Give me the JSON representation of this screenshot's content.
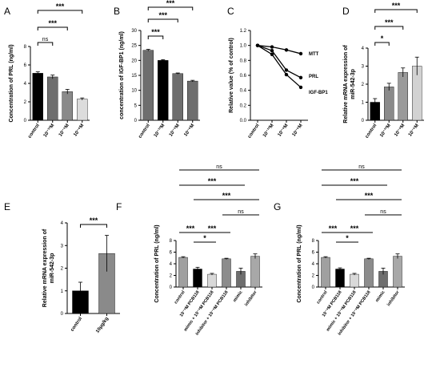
{
  "chart_data": [
    {
      "panel": "A",
      "type": "bar",
      "ylabel": "Concentration of PRL (ng/ml)",
      "ylim": [
        0,
        8
      ],
      "yticks": [
        0,
        2,
        4,
        6,
        8
      ],
      "categories": [
        "control",
        "10⁻¹²M",
        "10⁻⁹M",
        "10⁻⁶M"
      ],
      "values": [
        5.1,
        4.7,
        3.1,
        2.3
      ],
      "errors": [
        0.15,
        0.2,
        0.25,
        0.12
      ],
      "colors": [
        "#000000",
        "#6e6e6e",
        "#8a8a8a",
        "#dcdcdc"
      ],
      "sig": [
        {
          "from": 0,
          "to": 1,
          "label": "ns"
        },
        {
          "from": 0,
          "to": 2,
          "label": "***"
        },
        {
          "from": 0,
          "to": 3,
          "label": "***"
        }
      ]
    },
    {
      "panel": "B",
      "type": "bar",
      "ylabel": "concentration of IGF-BP1 (ng/ml)",
      "ylim": [
        0,
        30
      ],
      "yticks": [
        0,
        5,
        10,
        15,
        20,
        25,
        30
      ],
      "categories": [
        "control",
        "10⁻¹²M",
        "10⁻⁹M",
        "10⁻⁶M"
      ],
      "values": [
        23.4,
        20.0,
        15.6,
        13.1
      ],
      "errors": [
        0.3,
        0.25,
        0.2,
        0.25
      ],
      "colors": [
        "#6e6e6e",
        "#000000",
        "#6e6e6e",
        "#6e6e6e"
      ],
      "sig": [
        {
          "from": 0,
          "to": 1,
          "label": "***"
        },
        {
          "from": 0,
          "to": 2,
          "label": "***"
        },
        {
          "from": 0,
          "to": 3,
          "label": "***"
        }
      ]
    },
    {
      "panel": "C",
      "type": "line",
      "ylabel": "Relative value (% of control)",
      "ylim": [
        0,
        1.2
      ],
      "yticks": [
        0.0,
        0.2,
        0.4,
        0.6,
        0.8,
        1.0,
        1.2
      ],
      "categories": [
        "control",
        "10⁻¹²M",
        "10⁻⁹M",
        "10⁻⁶M"
      ],
      "series": [
        {
          "name": "MTT",
          "values": [
            1.0,
            0.98,
            0.94,
            0.89
          ]
        },
        {
          "name": "PRL",
          "values": [
            1.0,
            0.93,
            0.67,
            0.57
          ]
        },
        {
          "name": "IGF-BP1",
          "values": [
            1.0,
            0.88,
            0.61,
            0.44
          ]
        }
      ]
    },
    {
      "panel": "D",
      "type": "bar",
      "ylabel": "Relative mRNA expression of miR-542-3p",
      "ylim": [
        0,
        4
      ],
      "yticks": [
        0,
        1,
        2,
        3,
        4
      ],
      "categories": [
        "control",
        "10⁻¹²M",
        "10⁻⁹M",
        "10⁻⁶M"
      ],
      "values": [
        1.0,
        1.85,
        2.65,
        3.0
      ],
      "errors": [
        0.2,
        0.2,
        0.25,
        0.5
      ],
      "colors": [
        "#000000",
        "#8a8a8a",
        "#9a9a9a",
        "#d2d2d2"
      ],
      "sig": [
        {
          "from": 0,
          "to": 1,
          "label": "*"
        },
        {
          "from": 0,
          "to": 2,
          "label": "***"
        },
        {
          "from": 0,
          "to": 3,
          "label": "***"
        }
      ]
    },
    {
      "panel": "E",
      "type": "bar",
      "ylabel": "Relative mRNA expression of miR-542-3p",
      "ylim": [
        0,
        4
      ],
      "yticks": [
        0,
        1,
        2,
        3,
        4
      ],
      "categories": [
        "control",
        "10μg/kg"
      ],
      "values": [
        1.0,
        2.65
      ],
      "errors": [
        0.38,
        0.8
      ],
      "colors": [
        "#000000",
        "#8a8a8a"
      ],
      "sig": [
        {
          "from": 0,
          "to": 1,
          "label": "***"
        }
      ]
    },
    {
      "panel": "F",
      "type": "bar",
      "ylabel": "Concentration of PRL (ng/ml)",
      "ylim": [
        0,
        8
      ],
      "yticks": [
        0,
        2,
        4,
        6,
        8
      ],
      "categories": [
        "control",
        "10⁻⁹M PCB118",
        "mimic + 10⁻⁹M PCB118",
        "inhibitor + 10⁻⁹M PCB118",
        "mimic",
        "inhibitor"
      ],
      "values": [
        5.1,
        3.1,
        2.2,
        4.85,
        2.7,
        5.3
      ],
      "errors": [
        0.12,
        0.3,
        0.15,
        0.1,
        0.55,
        0.4
      ],
      "colors": [
        "#a0a0a0",
        "#000000",
        "#d9d9d9",
        "#8c8c8c",
        "#6e6e6e",
        "#a8a8a8"
      ],
      "sig": [
        {
          "from": 0,
          "to": 1,
          "label": "***"
        },
        {
          "from": 1,
          "to": 2,
          "label": "*"
        },
        {
          "from": 1,
          "to": 3,
          "label": "***"
        },
        {
          "from": 3,
          "to": 5,
          "label": "ns"
        },
        {
          "from": 1,
          "to": 5,
          "label": "***"
        },
        {
          "from": 0,
          "to": 4,
          "label": "***"
        },
        {
          "from": 0,
          "to": 5,
          "label": "ns"
        }
      ]
    },
    {
      "panel": "G",
      "type": "bar",
      "ylabel": "Concentration of PRL (ng/ml)",
      "ylim": [
        0,
        8
      ],
      "yticks": [
        0,
        2,
        4,
        6,
        8
      ],
      "categories": [
        "control",
        "10⁻⁹M PCB118",
        "mimic + 10⁻⁹M PCB118",
        "inhibitor + 10⁻⁹M PCB118",
        "mimic",
        "inhibitor"
      ],
      "values": [
        5.1,
        3.1,
        2.2,
        4.85,
        2.7,
        5.3
      ],
      "errors": [
        0.12,
        0.2,
        0.15,
        0.1,
        0.55,
        0.4
      ],
      "colors": [
        "#a0a0a0",
        "#000000",
        "#d9d9d9",
        "#8c8c8c",
        "#6e6e6e",
        "#a8a8a8"
      ],
      "sig": [
        {
          "from": 0,
          "to": 1,
          "label": "***"
        },
        {
          "from": 1,
          "to": 2,
          "label": "*"
        },
        {
          "from": 1,
          "to": 3,
          "label": "***"
        },
        {
          "from": 3,
          "to": 5,
          "label": "ns"
        },
        {
          "from": 1,
          "to": 5,
          "label": "***"
        },
        {
          "from": 0,
          "to": 4,
          "label": "***"
        },
        {
          "from": 0,
          "to": 5,
          "label": "ns"
        }
      ]
    }
  ]
}
